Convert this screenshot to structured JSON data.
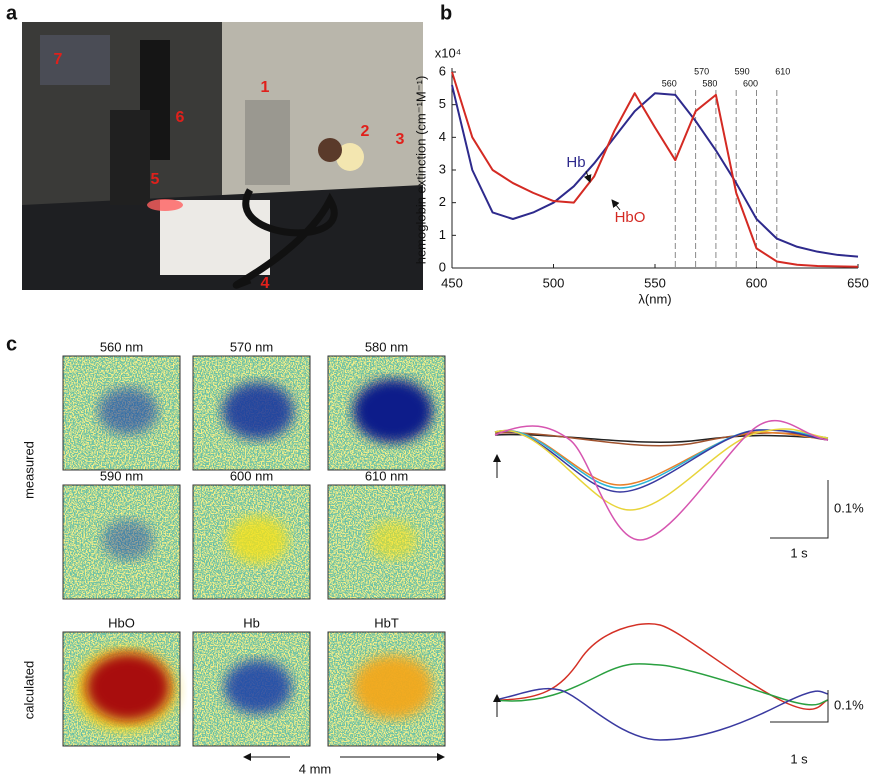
{
  "panel_labels": [
    "a",
    "b",
    "c"
  ],
  "photo": {
    "labels": [
      1,
      2,
      3,
      4,
      5,
      6,
      7
    ]
  },
  "spectrum": {
    "type": "line",
    "y_multiplier": "x10⁴",
    "ylabel": "hemoglobin extinction (cm⁻¹M⁻¹)",
    "xlabel": "λ(nm)",
    "x": [
      450,
      460,
      470,
      480,
      490,
      500,
      510,
      520,
      530,
      540,
      550,
      560,
      570,
      580,
      590,
      600,
      610,
      620,
      630,
      640,
      650
    ],
    "series": [
      {
        "name": "Hb",
        "color": "#2e2a8c",
        "values": [
          5.6,
          3.0,
          1.7,
          1.5,
          1.7,
          2.0,
          2.5,
          3.2,
          4.0,
          4.8,
          5.35,
          5.3,
          4.5,
          3.6,
          2.6,
          1.5,
          0.9,
          0.65,
          0.5,
          0.4,
          0.35
        ]
      },
      {
        "name": "HbO",
        "color": "#d42a23",
        "values": [
          6.0,
          4.0,
          3.0,
          2.6,
          2.3,
          2.05,
          2.0,
          2.8,
          4.2,
          5.35,
          4.3,
          3.3,
          4.8,
          5.3,
          2.3,
          0.6,
          0.2,
          0.1,
          0.06,
          0.05,
          0.04
        ]
      }
    ],
    "xlim": [
      450,
      650
    ],
    "ylim": [
      0,
      6
    ],
    "xticks": [
      450,
      500,
      550,
      600,
      650
    ],
    "yticks": [
      0,
      1,
      2,
      3,
      4,
      5,
      6
    ],
    "wavelength_markers": [
      560,
      570,
      580,
      590,
      600,
      610
    ]
  },
  "maps": {
    "wavelength_titles": [
      "560 nm",
      "570 nm",
      "580 nm",
      "590 nm",
      "600 nm",
      "610 nm"
    ],
    "row_labels": [
      "measured",
      "calculated"
    ],
    "calculated_titles": [
      "HbO",
      "Hb",
      "HbT"
    ],
    "scale": "4 mm"
  },
  "traces": {
    "amplitude_scale": "0.1%",
    "time_scale": "1 s"
  }
}
